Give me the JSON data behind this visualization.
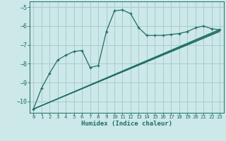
{
  "xlabel": "Humidex (Indice chaleur)",
  "xlim": [
    -0.5,
    23.5
  ],
  "ylim": [
    -10.6,
    -4.7
  ],
  "yticks": [
    -10,
    -9,
    -8,
    -7,
    -6,
    -5
  ],
  "xticks": [
    0,
    1,
    2,
    3,
    4,
    5,
    6,
    7,
    8,
    9,
    10,
    11,
    12,
    13,
    14,
    15,
    16,
    17,
    18,
    19,
    20,
    21,
    22,
    23
  ],
  "bg_color": "#cce8e8",
  "grid_color": "#aacccc",
  "line_color": "#1e6e60",
  "line1_x": [
    0,
    1,
    2,
    3,
    4,
    5,
    6,
    7,
    8,
    9,
    10,
    11,
    12,
    13,
    14,
    15,
    16,
    17,
    18,
    19,
    20,
    21,
    22,
    23
  ],
  "line1_y": [
    -10.4,
    -9.3,
    -8.5,
    -7.8,
    -7.55,
    -7.35,
    -7.3,
    -8.2,
    -8.1,
    -6.3,
    -5.2,
    -5.15,
    -5.35,
    -6.1,
    -6.5,
    -6.5,
    -6.5,
    -6.45,
    -6.4,
    -6.3,
    -6.1,
    -6.0,
    -6.15,
    -6.2
  ],
  "trend_lines": [
    {
      "x": [
        0,
        23
      ],
      "y": [
        -10.4,
        -6.18
      ]
    },
    {
      "x": [
        0,
        23
      ],
      "y": [
        -10.4,
        -6.22
      ]
    },
    {
      "x": [
        0,
        23
      ],
      "y": [
        -10.4,
        -6.26
      ]
    },
    {
      "x": [
        0,
        23
      ],
      "y": [
        -10.4,
        -6.3
      ]
    }
  ]
}
